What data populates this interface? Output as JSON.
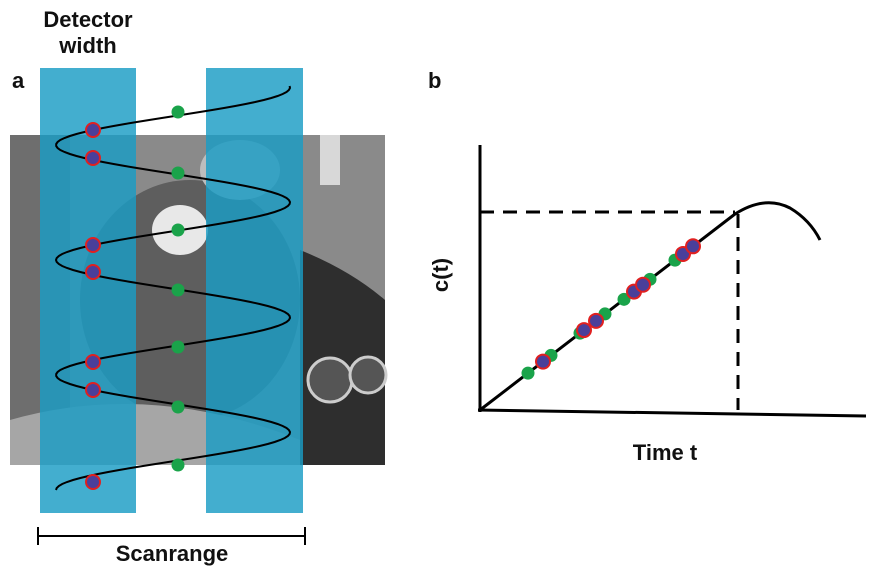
{
  "panel_a": {
    "label": "a",
    "title_lines": [
      "Detector",
      "width"
    ],
    "scan_label": "Scanrange"
  },
  "panel_b": {
    "label": "b",
    "y_label": "c(t)",
    "x_label": "Time t"
  }
}
